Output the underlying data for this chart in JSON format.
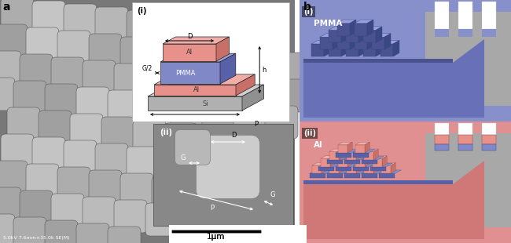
{
  "fig_width": 6.5,
  "fig_height": 3.1,
  "dpi": 100,
  "label_a": "a",
  "label_b": "b",
  "color_al_pink": "#E8908A",
  "color_al_pink_top": "#F0AEA8",
  "color_al_pink_side": "#C87068",
  "color_pmma_blue": "#8088C8",
  "color_pmma_top": "#9AA0D8",
  "color_pmma_side": "#5860A8",
  "color_si_gray": "#B0B0B0",
  "color_si_top": "#D0D0D0",
  "color_si_side": "#909090",
  "color_sem_bg_dark": "#606060",
  "color_sem_bg_light": "#909090",
  "color_particle": "#AFAFAF",
  "color_particle_edge": "#555555",
  "color_white": "#FFFFFF",
  "color_black": "#000000",
  "color_rp_blue_bg": "#8890CC",
  "color_rp_blue_base": "#6870B8",
  "color_rp_blue_dark": "#4A5290",
  "color_rp_pink_bg": "#E09090",
  "color_rp_pink_base": "#D07878",
  "color_rp_pink_dark": "#B85858",
  "color_gray_slab": "#A8A8A8",
  "color_gray_slab_top": "#C0C0C0",
  "color_gray_slab_side": "#888888",
  "color_white_pillar": "#FFFFFF",
  "scalebar_label": "1μm",
  "sem_text": "5.0kV 7.6mm×35.0k SE(M)"
}
